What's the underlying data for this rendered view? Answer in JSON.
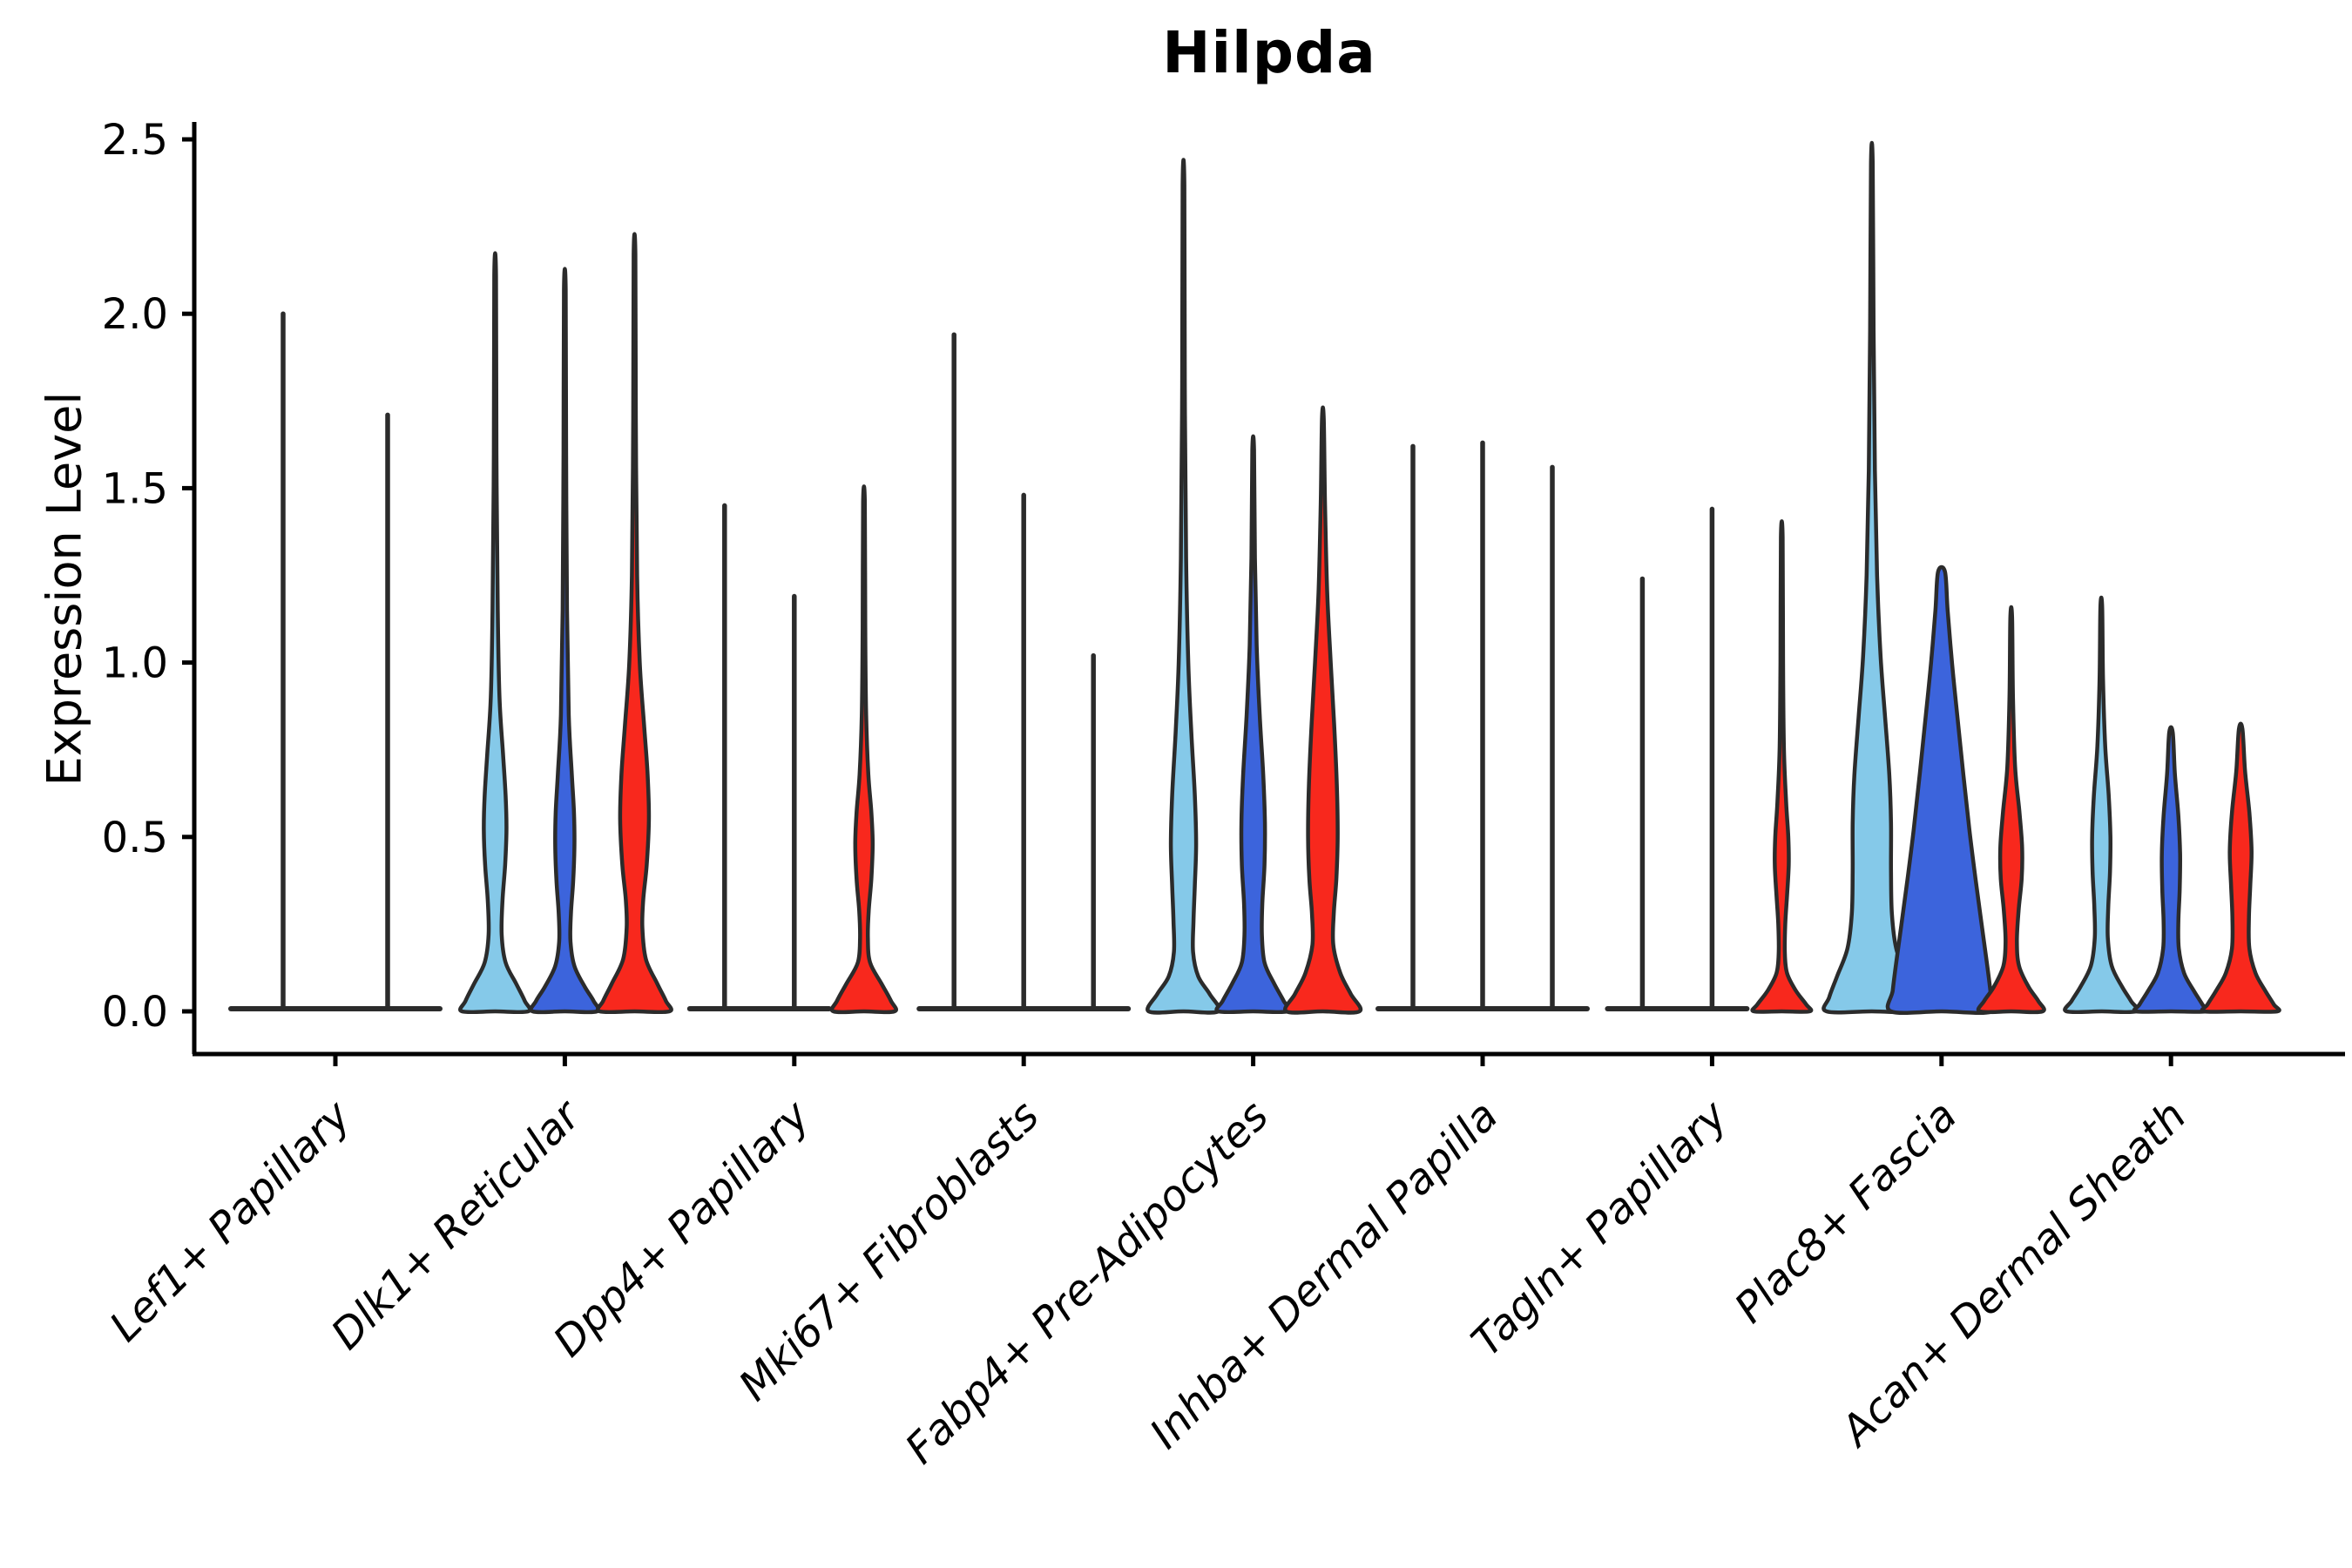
{
  "chart_data": {
    "type": "violin",
    "title": "Hilpda",
    "ylabel": "Expression Level",
    "xlabel": "",
    "ylim": [
      0,
      2.5
    ],
    "yticks": [
      0,
      0.5,
      1.0,
      1.5,
      2.0,
      2.5
    ],
    "ytick_labels": [
      "0.0",
      "0.5",
      "1.0",
      "1.5",
      "2.0",
      "2.5"
    ],
    "x_tick_label_angle": 45,
    "x_tick_label_style": "italic",
    "legend": "none",
    "grid": "off",
    "series_colors": {
      "light_blue": "#85C9E9",
      "dark_blue": "#3C64DC",
      "red": "#F8281D"
    },
    "outline_color": "#2B2B2B",
    "axis_color": "#000000",
    "categories": [
      "Lef1+ Papillary",
      "Dlk1+ Reticular",
      "Dpp4+ Papillary",
      "Mki67+ Fibroblasts",
      "Fabp4+ Pre-Adipocytes",
      "Inhba+ Dermal Papilla",
      "Tagln+ Papillary",
      "Plac8+ Fascia",
      "Acan+ Dermal Sheath"
    ],
    "groups": [
      {
        "category": "Lef1+ Papillary",
        "violins": [
          {
            "series": "light_blue",
            "type": "spike",
            "offset": -60,
            "max": 2.0,
            "base_halfwidth": 60
          },
          {
            "series": "dark_blue",
            "type": "spike",
            "offset": 60,
            "max": 1.71,
            "base_halfwidth": 60
          }
        ]
      },
      {
        "category": "Dlk1+ Reticular",
        "violins": [
          {
            "series": "light_blue",
            "type": "violin",
            "offset": -80,
            "max": 2.11,
            "profile": [
              [
                2.11,
                1
              ],
              [
                1.6,
                1.5
              ],
              [
                1.15,
                3
              ],
              [
                0.9,
                5
              ],
              [
                0.74,
                9
              ],
              [
                0.62,
                12
              ],
              [
                0.52,
                13
              ],
              [
                0.42,
                11.5
              ],
              [
                0.32,
                8.5
              ],
              [
                0.22,
                7.5
              ],
              [
                0.14,
                12
              ],
              [
                0.08,
                24
              ],
              [
                0.03,
                34
              ],
              [
                0,
                38
              ]
            ]
          },
          {
            "series": "dark_blue",
            "type": "violin",
            "offset": 0,
            "max": 2.07,
            "profile": [
              [
                2.07,
                1
              ],
              [
                1.6,
                1.5
              ],
              [
                1.15,
                2.5
              ],
              [
                0.85,
                4.5
              ],
              [
                0.68,
                8
              ],
              [
                0.57,
                10.5
              ],
              [
                0.47,
                11
              ],
              [
                0.37,
                9.5
              ],
              [
                0.28,
                7
              ],
              [
                0.2,
                6.5
              ],
              [
                0.13,
                11
              ],
              [
                0.07,
                23
              ],
              [
                0.03,
                33
              ],
              [
                0,
                37
              ]
            ]
          },
          {
            "series": "red",
            "type": "violin",
            "offset": 80,
            "max": 2.17,
            "profile": [
              [
                2.17,
                1
              ],
              [
                1.7,
                1.5
              ],
              [
                1.25,
                3
              ],
              [
                1.0,
                6
              ],
              [
                0.82,
                11
              ],
              [
                0.68,
                15
              ],
              [
                0.55,
                16.5
              ],
              [
                0.42,
                14
              ],
              [
                0.32,
                10
              ],
              [
                0.24,
                9
              ],
              [
                0.15,
                13
              ],
              [
                0.08,
                26
              ],
              [
                0.03,
                36
              ],
              [
                0,
                40
              ]
            ]
          }
        ]
      },
      {
        "category": "Dpp4+ Papillary",
        "violins": [
          {
            "series": "light_blue",
            "type": "spike",
            "offset": -80,
            "max": 1.45,
            "base_halfwidth": 40
          },
          {
            "series": "dark_blue",
            "type": "spike",
            "offset": 0,
            "max": 1.19,
            "base_halfwidth": 40
          },
          {
            "series": "red",
            "type": "violin",
            "offset": 80,
            "max": 1.46,
            "profile": [
              [
                1.46,
                1
              ],
              [
                1.1,
                1.5
              ],
              [
                0.85,
                2.5
              ],
              [
                0.68,
                5
              ],
              [
                0.57,
                8.5
              ],
              [
                0.48,
                10
              ],
              [
                0.38,
                8.5
              ],
              [
                0.29,
                5.5
              ],
              [
                0.21,
                4.5
              ],
              [
                0.14,
                7
              ],
              [
                0.08,
                20
              ],
              [
                0.03,
                31
              ],
              [
                0,
                35
              ]
            ]
          }
        ]
      },
      {
        "category": "Mki67+ Fibroblasts",
        "violins": [
          {
            "series": "light_blue",
            "type": "spike",
            "offset": -80,
            "max": 1.94,
            "base_halfwidth": 40
          },
          {
            "series": "dark_blue",
            "type": "spike",
            "offset": 0,
            "max": 1.48,
            "base_halfwidth": 40
          },
          {
            "series": "red",
            "type": "spike",
            "offset": 80,
            "max": 1.02,
            "base_halfwidth": 40
          }
        ]
      },
      {
        "category": "Fabp4+ Pre-Adipocytes",
        "violins": [
          {
            "series": "light_blue",
            "type": "violin",
            "offset": -80,
            "max": 2.37,
            "profile": [
              [
                2.37,
                1
              ],
              [
                1.8,
                1.5
              ],
              [
                1.3,
                3
              ],
              [
                1.0,
                5.5
              ],
              [
                0.8,
                9
              ],
              [
                0.62,
                13
              ],
              [
                0.48,
                14.5
              ],
              [
                0.36,
                13
              ],
              [
                0.26,
                11.5
              ],
              [
                0.17,
                11
              ],
              [
                0.1,
                17
              ],
              [
                0.05,
                30
              ],
              [
                0,
                40
              ]
            ]
          },
          {
            "series": "dark_blue",
            "type": "violin",
            "offset": 0,
            "max": 1.61,
            "profile": [
              [
                1.61,
                1
              ],
              [
                1.3,
                2
              ],
              [
                1.05,
                4
              ],
              [
                0.85,
                7.5
              ],
              [
                0.68,
                11.5
              ],
              [
                0.54,
                13.5
              ],
              [
                0.42,
                13
              ],
              [
                0.31,
                10.5
              ],
              [
                0.22,
                10
              ],
              [
                0.14,
                13
              ],
              [
                0.08,
                24
              ],
              [
                0.03,
                35
              ],
              [
                0,
                40
              ]
            ]
          },
          {
            "series": "red",
            "type": "violin",
            "offset": 80,
            "max": 1.7,
            "profile": [
              [
                1.7,
                1
              ],
              [
                1.45,
                2.5
              ],
              [
                1.2,
                5
              ],
              [
                1.0,
                9
              ],
              [
                0.82,
                13
              ],
              [
                0.65,
                16
              ],
              [
                0.5,
                17
              ],
              [
                0.38,
                15.5
              ],
              [
                0.28,
                12.5
              ],
              [
                0.19,
                12
              ],
              [
                0.11,
                20
              ],
              [
                0.05,
                32
              ],
              [
                0,
                42
              ]
            ]
          }
        ]
      },
      {
        "category": "Inhba+ Dermal Papilla",
        "violins": [
          {
            "series": "light_blue",
            "type": "spike",
            "offset": -80,
            "max": 1.62,
            "base_halfwidth": 40
          },
          {
            "series": "dark_blue",
            "type": "spike",
            "offset": 0,
            "max": 1.63,
            "base_halfwidth": 40
          },
          {
            "series": "red",
            "type": "spike",
            "offset": 80,
            "max": 1.56,
            "base_halfwidth": 40
          }
        ]
      },
      {
        "category": "Tagln+ Papillary",
        "violins": [
          {
            "series": "light_blue",
            "type": "spike",
            "offset": -80,
            "max": 1.24,
            "base_halfwidth": 40
          },
          {
            "series": "dark_blue",
            "type": "spike",
            "offset": 0,
            "max": 1.44,
            "base_halfwidth": 40
          },
          {
            "series": "red",
            "type": "violin",
            "offset": 80,
            "max": 1.36,
            "profile": [
              [
                1.36,
                1
              ],
              [
                1.0,
                1.5
              ],
              [
                0.75,
                2.5
              ],
              [
                0.6,
                5
              ],
              [
                0.5,
                7.5
              ],
              [
                0.42,
                8
              ],
              [
                0.33,
                6
              ],
              [
                0.25,
                4
              ],
              [
                0.17,
                3.5
              ],
              [
                0.11,
                6
              ],
              [
                0.06,
                16
              ],
              [
                0.02,
                28
              ],
              [
                0,
                32
              ]
            ]
          }
        ]
      },
      {
        "category": "Plac8+ Fascia",
        "violins": [
          {
            "series": "light_blue",
            "type": "violin",
            "offset": -80,
            "max": 2.43,
            "profile": [
              [
                2.43,
                1
              ],
              [
                1.95,
                2
              ],
              [
                1.55,
                3.5
              ],
              [
                1.25,
                6
              ],
              [
                1.02,
                10
              ],
              [
                0.85,
                15
              ],
              [
                0.68,
                20
              ],
              [
                0.54,
                22
              ],
              [
                0.4,
                22
              ],
              [
                0.28,
                23
              ],
              [
                0.18,
                28
              ],
              [
                0.1,
                40
              ],
              [
                0.04,
                49
              ],
              [
                0,
                52
              ]
            ]
          },
          {
            "series": "dark_blue",
            "type": "violin",
            "offset": 0,
            "max": 1.26,
            "profile": [
              [
                1.26,
                4
              ],
              [
                1.15,
                7
              ],
              [
                1.0,
                12
              ],
              [
                0.85,
                18
              ],
              [
                0.68,
                25
              ],
              [
                0.52,
                32
              ],
              [
                0.38,
                39
              ],
              [
                0.25,
                46
              ],
              [
                0.14,
                52
              ],
              [
                0.06,
                56
              ],
              [
                0,
                58
              ]
            ]
          },
          {
            "series": "red",
            "type": "violin",
            "offset": 80,
            "max": 1.13,
            "profile": [
              [
                1.13,
                1
              ],
              [
                0.9,
                2
              ],
              [
                0.7,
                4.5
              ],
              [
                0.57,
                9.5
              ],
              [
                0.47,
                12.5
              ],
              [
                0.38,
                12
              ],
              [
                0.29,
                8.5
              ],
              [
                0.2,
                6.5
              ],
              [
                0.13,
                9
              ],
              [
                0.07,
                20
              ],
              [
                0.03,
                31
              ],
              [
                0,
                36
              ]
            ]
          }
        ]
      },
      {
        "category": "Acan+ Dermal Sheath",
        "violins": [
          {
            "series": "light_blue",
            "type": "violin",
            "offset": -80,
            "max": 1.16,
            "profile": [
              [
                1.16,
                1
              ],
              [
                0.95,
                2
              ],
              [
                0.76,
                4.5
              ],
              [
                0.62,
                8.5
              ],
              [
                0.5,
                10.5
              ],
              [
                0.4,
                10
              ],
              [
                0.3,
                8
              ],
              [
                0.21,
                7.5
              ],
              [
                0.13,
                12
              ],
              [
                0.07,
                24
              ],
              [
                0.03,
                34
              ],
              [
                0,
                40
              ]
            ]
          },
          {
            "series": "dark_blue",
            "type": "violin",
            "offset": 0,
            "max": 0.8,
            "profile": [
              [
                0.8,
                2
              ],
              [
                0.68,
                4.5
              ],
              [
                0.56,
                8.5
              ],
              [
                0.45,
                10.5
              ],
              [
                0.35,
                10
              ],
              [
                0.26,
                8.5
              ],
              [
                0.18,
                9
              ],
              [
                0.11,
                15
              ],
              [
                0.06,
                26
              ],
              [
                0.02,
                36
              ],
              [
                0,
                40
              ]
            ]
          },
          {
            "series": "red",
            "type": "violin",
            "offset": 80,
            "max": 0.81,
            "profile": [
              [
                0.81,
                2
              ],
              [
                0.69,
                5
              ],
              [
                0.57,
                10
              ],
              [
                0.46,
                12.5
              ],
              [
                0.36,
                11
              ],
              [
                0.27,
                9.5
              ],
              [
                0.18,
                10
              ],
              [
                0.11,
                17
              ],
              [
                0.06,
                28
              ],
              [
                0.02,
                38
              ],
              [
                0,
                42
              ]
            ]
          }
        ]
      }
    ]
  }
}
